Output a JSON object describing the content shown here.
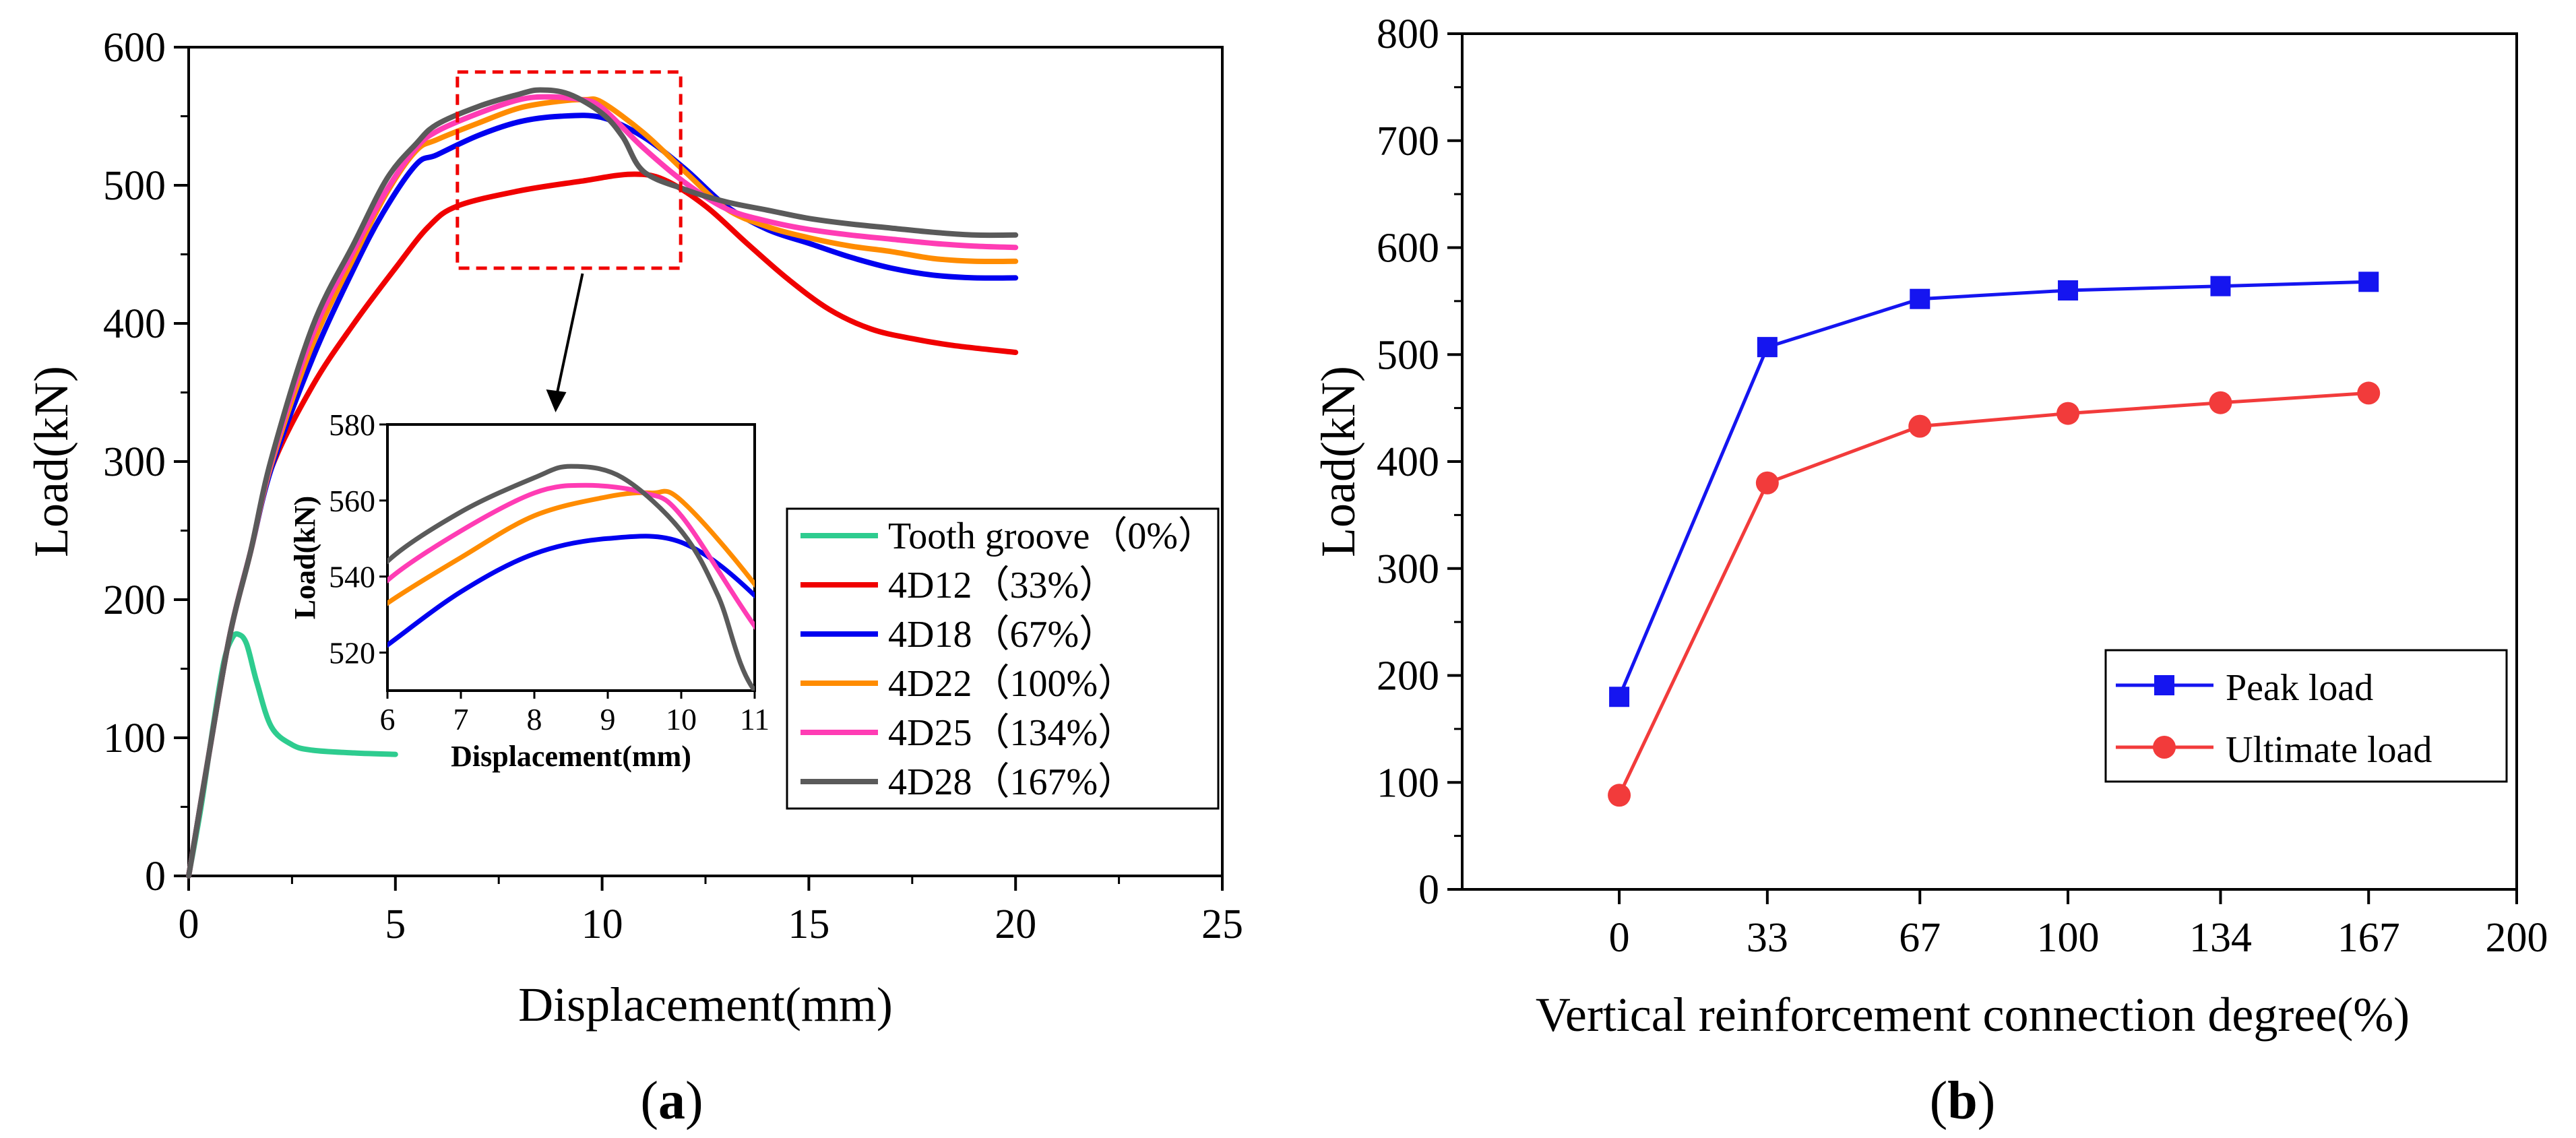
{
  "chart_data": [
    {
      "panel": "(a)",
      "panel_label": {
        "open": "(",
        "letter": "a",
        "close": ")"
      },
      "type": "line",
      "xlabel": "Displacement(mm)",
      "ylabel": "Load(kN)",
      "xlim": [
        0,
        25
      ],
      "ylim": [
        0,
        600
      ],
      "xticks": [
        0,
        5,
        10,
        15,
        20,
        25
      ],
      "yticks": [
        0,
        100,
        200,
        300,
        400,
        500,
        600
      ],
      "legend_position": "bottom-right",
      "series": [
        {
          "name": "Tooth groove（0%）",
          "color": "#2ECC8F",
          "points": [
            [
              0,
              0
            ],
            [
              0.3,
              50
            ],
            [
              0.6,
              110
            ],
            [
              0.85,
              155
            ],
            [
              1.05,
              172
            ],
            [
              1.2,
              175
            ],
            [
              1.4,
              168
            ],
            [
              1.65,
              140
            ],
            [
              2.0,
              108
            ],
            [
              2.5,
              95
            ],
            [
              3.0,
              91
            ],
            [
              4.0,
              89
            ],
            [
              5.0,
              88
            ]
          ]
        },
        {
          "name": "4D12（33%）",
          "color": "#F00000",
          "points": [
            [
              0,
              0
            ],
            [
              0.5,
              90
            ],
            [
              1,
              175
            ],
            [
              1.5,
              235
            ],
            [
              2,
              295
            ],
            [
              3,
              355
            ],
            [
              4,
              400
            ],
            [
              5,
              440
            ],
            [
              5.8,
              470
            ],
            [
              6.5,
              485
            ],
            [
              8,
              496
            ],
            [
              9.5,
              503
            ],
            [
              10.7,
              508
            ],
            [
              11.5,
              504
            ],
            [
              12.5,
              485
            ],
            [
              13.5,
              458
            ],
            [
              14.5,
              432
            ],
            [
              15.5,
              410
            ],
            [
              16.5,
              396
            ],
            [
              17.5,
              389
            ],
            [
              18.5,
              384
            ],
            [
              20,
              379
            ]
          ]
        },
        {
          "name": "4D18（67%）",
          "color": "#0000F0",
          "points": [
            [
              0,
              0
            ],
            [
              0.5,
              90
            ],
            [
              1,
              175
            ],
            [
              1.5,
              235
            ],
            [
              2,
              295
            ],
            [
              3,
              375
            ],
            [
              4,
              440
            ],
            [
              4.7,
              480
            ],
            [
              5.5,
              515
            ],
            [
              6,
              522
            ],
            [
              7,
              536
            ],
            [
              8,
              546
            ],
            [
              9,
              550
            ],
            [
              10,
              549
            ],
            [
              11,
              535
            ],
            [
              12,
              512
            ],
            [
              13,
              485
            ],
            [
              14,
              468
            ],
            [
              15,
              458
            ],
            [
              16,
              448
            ],
            [
              17,
              440
            ],
            [
              18,
              435
            ],
            [
              19,
              433
            ],
            [
              20,
              433
            ]
          ]
        },
        {
          "name": "4D22（100%）",
          "color": "#FF8C00",
          "points": [
            [
              0,
              0
            ],
            [
              0.5,
              90
            ],
            [
              1,
              175
            ],
            [
              1.5,
              235
            ],
            [
              2,
              298
            ],
            [
              3,
              385
            ],
            [
              4,
              448
            ],
            [
              4.8,
              495
            ],
            [
              5.5,
              525
            ],
            [
              6,
              533
            ],
            [
              7,
              545
            ],
            [
              8,
              556
            ],
            [
              9,
              561
            ],
            [
              9.6,
              562
            ],
            [
              10,
              560
            ],
            [
              11,
              538
            ],
            [
              12,
              510
            ],
            [
              13,
              483
            ],
            [
              14,
              470
            ],
            [
              15,
              462
            ],
            [
              16,
              456
            ],
            [
              17,
              452
            ],
            [
              18,
              447
            ],
            [
              19,
              445
            ],
            [
              20,
              445
            ]
          ]
        },
        {
          "name": "4D25（134%）",
          "color": "#FF3CB4",
          "points": [
            [
              0,
              0
            ],
            [
              0.5,
              90
            ],
            [
              1,
              175
            ],
            [
              1.5,
              235
            ],
            [
              2,
              300
            ],
            [
              3,
              392
            ],
            [
              4,
              453
            ],
            [
              4.8,
              497
            ],
            [
              5.5,
              527
            ],
            [
              6,
              539
            ],
            [
              7,
              552
            ],
            [
              8,
              562
            ],
            [
              8.7,
              564
            ],
            [
              9.5,
              562
            ],
            [
              10,
              556
            ],
            [
              11,
              527
            ],
            [
              12,
              502
            ],
            [
              13,
              483
            ],
            [
              14,
              474
            ],
            [
              15,
              468
            ],
            [
              16,
              464
            ],
            [
              17,
              461
            ],
            [
              18,
              458
            ],
            [
              19,
              456
            ],
            [
              20,
              455
            ]
          ]
        },
        {
          "name": "4D28（167%）",
          "color": "#5A5A5A",
          "points": [
            [
              0,
              0
            ],
            [
              0.5,
              90
            ],
            [
              1,
              175
            ],
            [
              1.5,
              235
            ],
            [
              2,
              302
            ],
            [
              3,
              398
            ],
            [
              4,
              458
            ],
            [
              4.8,
              505
            ],
            [
              5.5,
              530
            ],
            [
              6,
              544
            ],
            [
              7,
              557
            ],
            [
              8,
              566
            ],
            [
              8.5,
              569
            ],
            [
              9.2,
              566
            ],
            [
              10,
              552
            ],
            [
              10.5,
              535
            ],
            [
              11,
              510
            ],
            [
              12,
              497
            ],
            [
              13,
              488
            ],
            [
              14,
              482
            ],
            [
              15,
              476
            ],
            [
              16,
              472
            ],
            [
              17,
              469
            ],
            [
              18,
              466
            ],
            [
              19,
              464
            ],
            [
              20,
              464
            ]
          ]
        }
      ],
      "zoom_box": {
        "x_range": [
          6.5,
          11.9
        ],
        "y_range": [
          440,
          582
        ]
      },
      "inset": {
        "xlabel": "Displacement(mm)",
        "ylabel": "Load(kN)",
        "xlim": [
          6,
          11
        ],
        "ylim": [
          510,
          580
        ],
        "xticks": [
          6,
          7,
          8,
          9,
          10,
          11
        ],
        "yticks": [
          520,
          540,
          560,
          580
        ]
      }
    },
    {
      "panel": "(b)",
      "panel_label": {
        "open": "(",
        "letter": "b",
        "close": ")"
      },
      "type": "line",
      "xlabel": "Vertical reinforcement connection degree(%)",
      "ylabel": "Load(kN)",
      "xlim": [
        -35,
        200
      ],
      "ylim": [
        0,
        800
      ],
      "xticks": [
        0,
        33,
        67,
        100,
        134,
        167,
        200
      ],
      "yticks": [
        0,
        100,
        200,
        300,
        400,
        500,
        600,
        700,
        800
      ],
      "legend_position": "bottom-right",
      "categories": [
        0,
        33,
        67,
        100,
        134,
        167
      ],
      "series": [
        {
          "name": "Peak load",
          "color": "#1515F0",
          "marker": "square",
          "values": [
            180,
            507,
            552,
            560,
            564,
            568
          ]
        },
        {
          "name": "Ultimate load",
          "color": "#F23B3B",
          "marker": "circle",
          "values": [
            88,
            380,
            433,
            445,
            455,
            464
          ]
        }
      ]
    }
  ]
}
